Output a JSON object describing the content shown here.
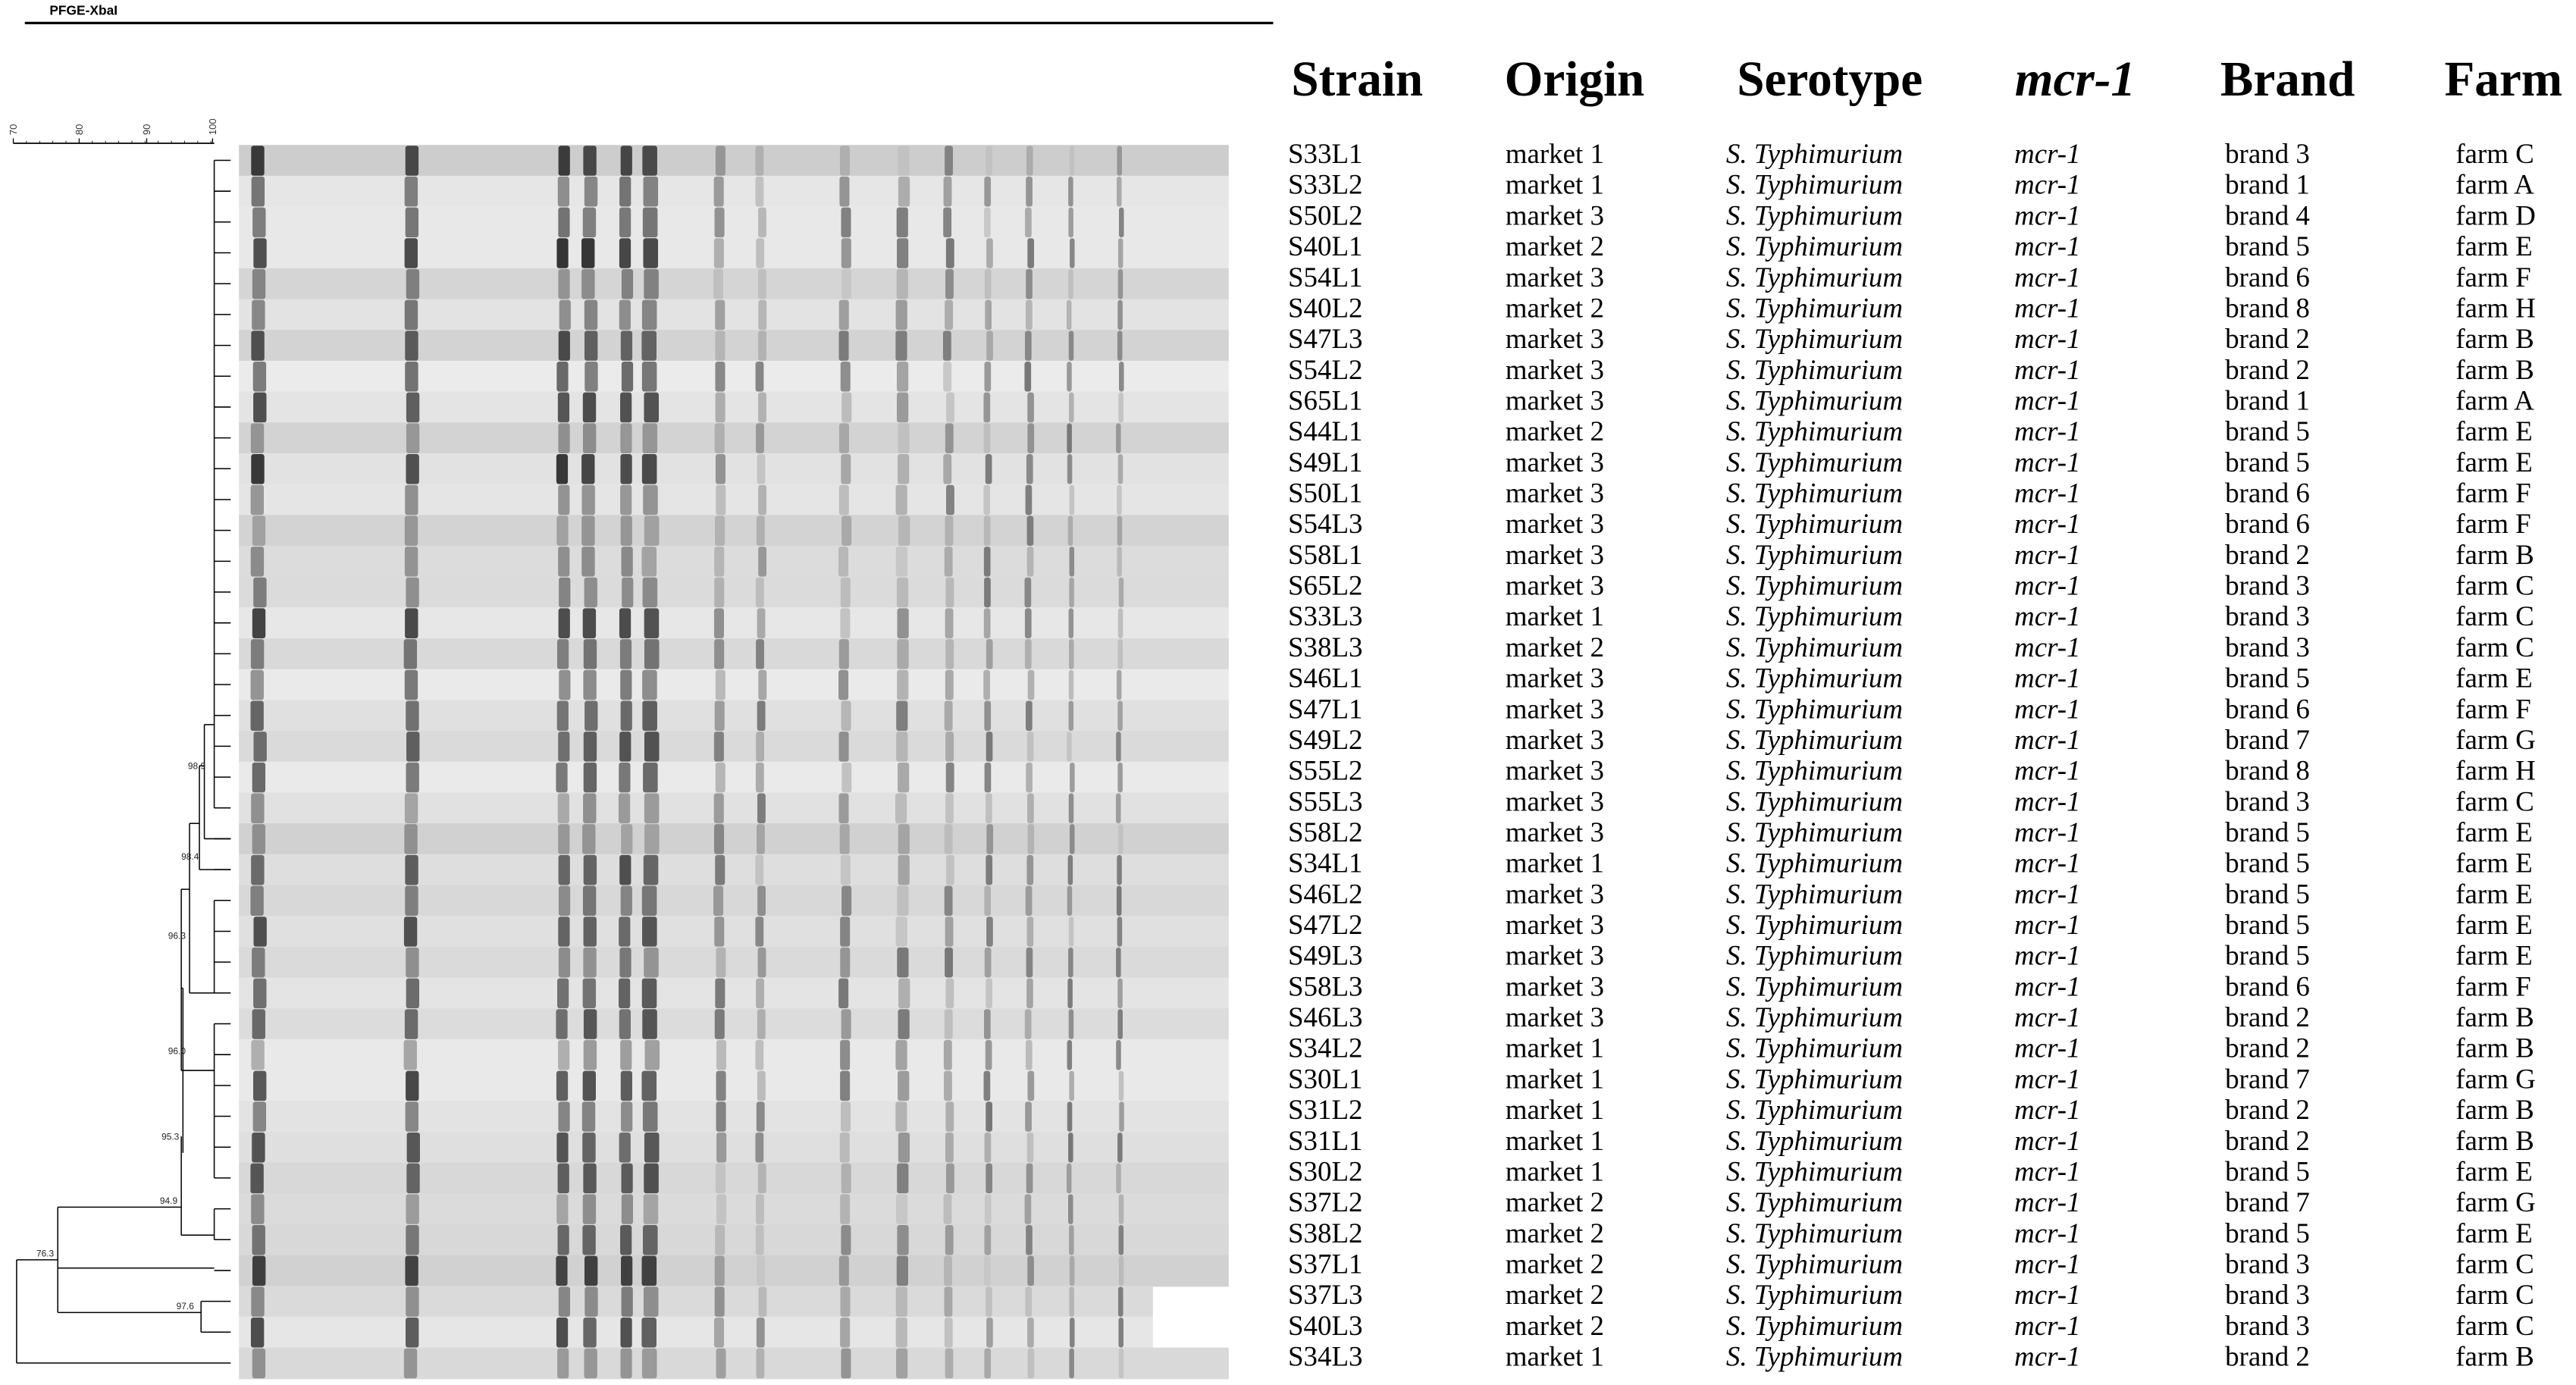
{
  "header": {
    "title": "PFGE-XbaI"
  },
  "scale": {
    "ticks": [
      "70",
      "80",
      "90",
      "100"
    ]
  },
  "dendrogram": {
    "nodes": [
      {
        "label": "98.9"
      },
      {
        "label": "98.4"
      },
      {
        "label": "96.3"
      },
      {
        "label": "96.0"
      },
      {
        "label": "95.3"
      },
      {
        "label": "94.9"
      },
      {
        "label": "76.3"
      },
      {
        "label": "97.6"
      }
    ]
  },
  "table": {
    "columns": [
      "Strain",
      "Origin",
      "Serotype",
      "mcr-1",
      "Brand",
      "Farm"
    ],
    "rows": [
      [
        "S33L1",
        "market 1",
        "S. Typhimurium",
        "mcr-1",
        "brand 3",
        "farm C"
      ],
      [
        "S33L2",
        "market 1",
        "S. Typhimurium",
        "mcr-1",
        "brand 1",
        "farm A"
      ],
      [
        "S50L2",
        "market 3",
        "S. Typhimurium",
        "mcr-1",
        "brand 4",
        "farm D"
      ],
      [
        "S40L1",
        "market 2",
        "S. Typhimurium",
        "mcr-1",
        "brand 5",
        "farm E"
      ],
      [
        "S54L1",
        "market 3",
        "S. Typhimurium",
        "mcr-1",
        "brand 6",
        "farm F"
      ],
      [
        "S40L2",
        "market 2",
        "S. Typhimurium",
        "mcr-1",
        "brand 8",
        "farm H"
      ],
      [
        "S47L3",
        "market 3",
        "S. Typhimurium",
        "mcr-1",
        "brand 2",
        "farm B"
      ],
      [
        "S54L2",
        "market 3",
        "S. Typhimurium",
        "mcr-1",
        "brand 2",
        "farm B"
      ],
      [
        "S65L1",
        "market 3",
        "S. Typhimurium",
        "mcr-1",
        "brand 1",
        "farm A"
      ],
      [
        "S44L1",
        "market 2",
        "S. Typhimurium",
        "mcr-1",
        "brand 5",
        "farm E"
      ],
      [
        "S49L1",
        "market 3",
        "S. Typhimurium",
        "mcr-1",
        "brand 5",
        "farm E"
      ],
      [
        "S50L1",
        "market 3",
        "S. Typhimurium",
        "mcr-1",
        "brand 6",
        "farm F"
      ],
      [
        "S54L3",
        "market 3",
        "S. Typhimurium",
        "mcr-1",
        "brand 6",
        "farm F"
      ],
      [
        "S58L1",
        "market 3",
        "S. Typhimurium",
        "mcr-1",
        "brand 2",
        "farm B"
      ],
      [
        "S65L2",
        "market 3",
        "S. Typhimurium",
        "mcr-1",
        "brand 3",
        "farm C"
      ],
      [
        "S33L3",
        "market 1",
        "S. Typhimurium",
        "mcr-1",
        "brand 3",
        "farm C"
      ],
      [
        "S38L3",
        "market 2",
        "S. Typhimurium",
        "mcr-1",
        "brand 3",
        "farm C"
      ],
      [
        "S46L1",
        "market 3",
        "S. Typhimurium",
        "mcr-1",
        "brand 5",
        "farm E"
      ],
      [
        "S47L1",
        "market 3",
        "S. Typhimurium",
        "mcr-1",
        "brand 6",
        "farm F"
      ],
      [
        "S49L2",
        "market 3",
        "S. Typhimurium",
        "mcr-1",
        "brand 7",
        "farm G"
      ],
      [
        "S55L2",
        "market 3",
        "S. Typhimurium",
        "mcr-1",
        "brand 8",
        "farm H"
      ],
      [
        "S55L3",
        "market 3",
        "S. Typhimurium",
        "mcr-1",
        "brand 3",
        "farm C"
      ],
      [
        "S58L2",
        "market 3",
        "S. Typhimurium",
        "mcr-1",
        "brand 5",
        "farm E"
      ],
      [
        "S34L1",
        "market 1",
        "S. Typhimurium",
        "mcr-1",
        "brand 5",
        "farm E"
      ],
      [
        "S46L2",
        "market 3",
        "S. Typhimurium",
        "mcr-1",
        "brand 5",
        "farm E"
      ],
      [
        "S47L2",
        "market 3",
        "S. Typhimurium",
        "mcr-1",
        "brand 5",
        "farm E"
      ],
      [
        "S49L3",
        "market 3",
        "S. Typhimurium",
        "mcr-1",
        "brand 5",
        "farm E"
      ],
      [
        "S58L3",
        "market 3",
        "S. Typhimurium",
        "mcr-1",
        "brand 6",
        "farm F"
      ],
      [
        "S46L3",
        "market 3",
        "S. Typhimurium",
        "mcr-1",
        "brand 2",
        "farm B"
      ],
      [
        "S34L2",
        "market 1",
        "S. Typhimurium",
        "mcr-1",
        "brand 2",
        "farm B"
      ],
      [
        "S30L1",
        "market 1",
        "S. Typhimurium",
        "mcr-1",
        "brand 7",
        "farm G"
      ],
      [
        "S31L2",
        "market 1",
        "S. Typhimurium",
        "mcr-1",
        "brand 2",
        "farm B"
      ],
      [
        "S31L1",
        "market 1",
        "S. Typhimurium",
        "mcr-1",
        "brand 2",
        "farm B"
      ],
      [
        "S30L2",
        "market 1",
        "S. Typhimurium",
        "mcr-1",
        "brand 5",
        "farm E"
      ],
      [
        "S37L2",
        "market 2",
        "S. Typhimurium",
        "mcr-1",
        "brand 7",
        "farm G"
      ],
      [
        "S38L2",
        "market 2",
        "S. Typhimurium",
        "mcr-1",
        "brand 5",
        "farm E"
      ],
      [
        "S37L1",
        "market 2",
        "S. Typhimurium",
        "mcr-1",
        "brand 3",
        "farm C"
      ],
      [
        "S37L3",
        "market 2",
        "S. Typhimurium",
        "mcr-1",
        "brand 3",
        "farm C"
      ],
      [
        "S40L3",
        "market 2",
        "S. Typhimurium",
        "mcr-1",
        "brand 3",
        "farm C"
      ],
      [
        "S34L3",
        "market 1",
        "S. Typhimurium",
        "mcr-1",
        "brand 2",
        "farm B"
      ]
    ]
  }
}
